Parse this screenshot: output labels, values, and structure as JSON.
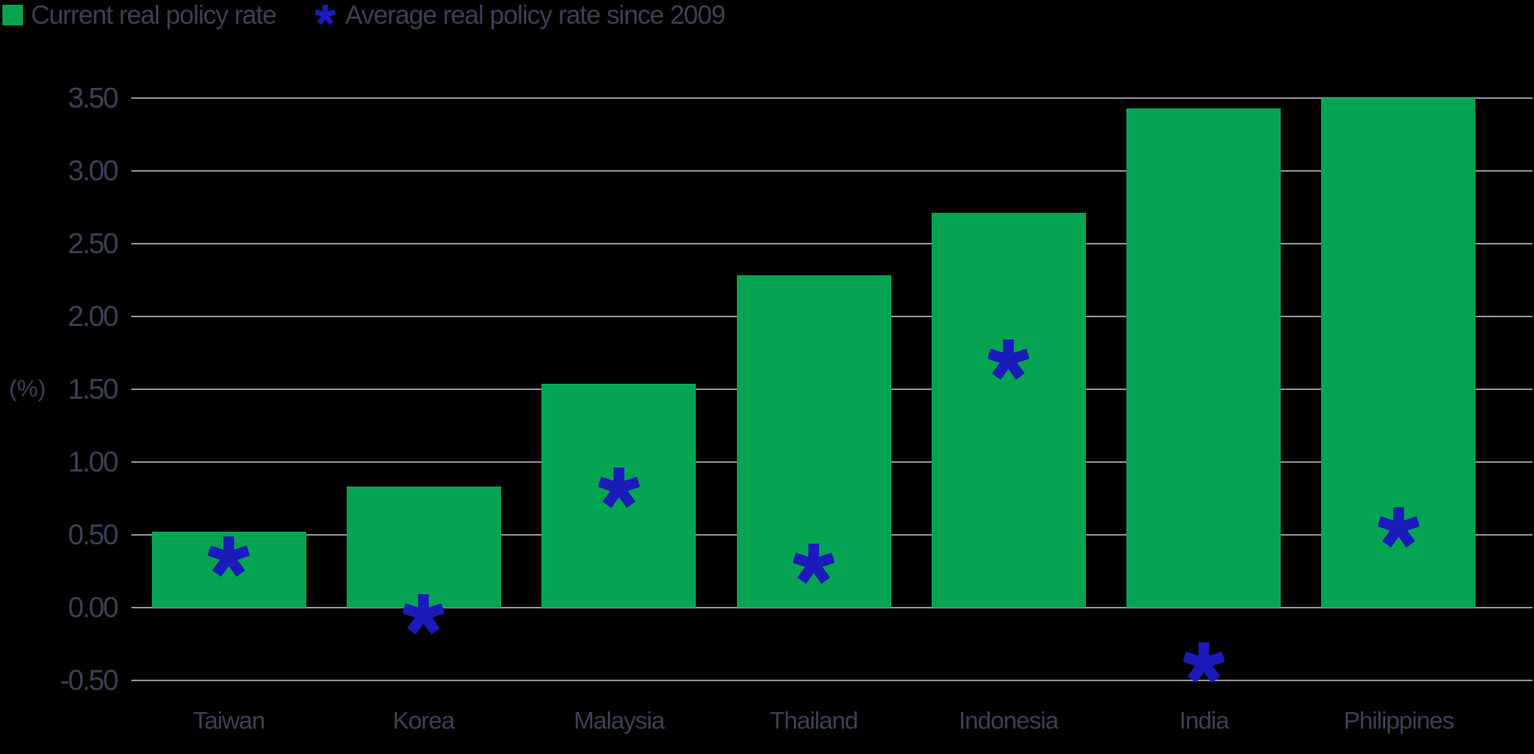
{
  "chart_data": {
    "type": "bar",
    "categories": [
      "Taiwan",
      "Korea",
      "Malaysia",
      "Thailand",
      "Indonesia",
      "India",
      "Philippines"
    ],
    "series": [
      {
        "name": "Current real policy rate",
        "type": "bar",
        "color": "#04a452",
        "values": [
          0.52,
          0.83,
          1.54,
          2.28,
          2.71,
          3.43,
          3.5
        ]
      },
      {
        "name": "Average real policy rate since 2009",
        "type": "scatter",
        "marker": "asterisk",
        "color": "#1b1abb",
        "values": [
          0.35,
          -0.05,
          0.82,
          0.3,
          1.7,
          -0.38,
          0.55
        ]
      }
    ],
    "ylabel": "(%)",
    "ylim": [
      -0.5,
      3.5
    ],
    "ytick_step": 0.5,
    "ytick_labels": [
      "3.50",
      "3.00",
      "2.50",
      "2.00",
      "1.50",
      "1.00",
      "0.50",
      "0.00",
      "-0.50"
    ],
    "grid": true,
    "legend_position": "top-left"
  },
  "colors": {
    "bar_green": "#04a452",
    "marker_blue": "#1b1abb",
    "text": "#3a4053",
    "gridline": "#8e8e9b",
    "background": "#000000"
  }
}
